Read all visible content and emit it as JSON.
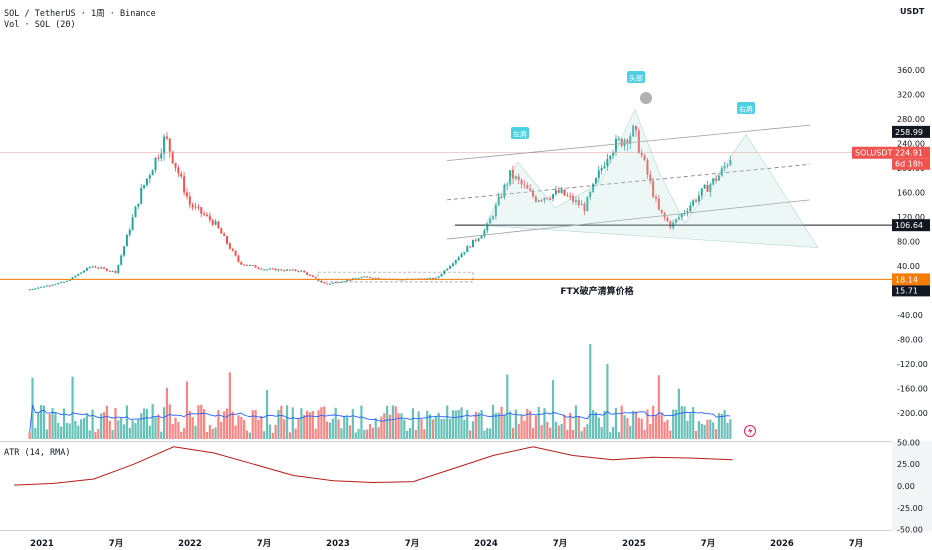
{
  "header": {
    "title": "SOL / TetherUS · 1周 · Binance",
    "volume_label": "Vol · SOL (20)",
    "currency": "USDT"
  },
  "atr_label": "ATR (14, RMA)",
  "annotations": {
    "ftx_label": "FTX破产清算价格",
    "left_shoulder": "左肩",
    "head": "头部",
    "right_shoulder": "右肩"
  },
  "price_tags": {
    "symbol": "SOLUSDT",
    "last_price": "224.91",
    "countdown": "6d 18h",
    "resistance": "258.99",
    "neckline": "106.64",
    "ftx_price": "18.14",
    "low_price": "15.71"
  },
  "colors": {
    "up": "#26a69a",
    "down": "#ef5350",
    "volume_ma": "#2962ff",
    "atr": "#b71c1c",
    "ftx_line": "#f57c00",
    "label_tag": "#4dd0e1"
  },
  "chart_data": {
    "type": "candlestick",
    "title": "SOL / TetherUS · 1周 · Binance",
    "price_axis_ticks": [
      "360.00",
      "320.00",
      "280.00",
      "240.00",
      "200.00",
      "160.00",
      "120.00",
      "80.00",
      "40.00",
      "0.00",
      "-40.00",
      "-80.00",
      "-120.00",
      "-160.00",
      "-200.00"
    ],
    "atr_axis_ticks": [
      "50.00",
      "25.00",
      "0.00",
      "-25.00",
      "-50.00"
    ],
    "x_ticks": [
      "2021",
      "7月",
      "2022",
      "7月",
      "2023",
      "7月",
      "2024",
      "7月",
      "2025",
      "7月",
      "2026",
      "7月"
    ],
    "y_range": [
      -200,
      380
    ],
    "key_prices": {
      "resistance": 258.99,
      "last": 224.91,
      "neckline": 106.64,
      "ftx": 18.14,
      "low": 15.71
    },
    "price_path": [
      {
        "date": "2020-12",
        "close": 2
      },
      {
        "date": "2021-03",
        "close": 15
      },
      {
        "date": "2021-05",
        "close": 40
      },
      {
        "date": "2021-07",
        "close": 30
      },
      {
        "date": "2021-09",
        "close": 160
      },
      {
        "date": "2021-11",
        "close": 250
      },
      {
        "date": "2022-01",
        "close": 140
      },
      {
        "date": "2022-03",
        "close": 110
      },
      {
        "date": "2022-05",
        "close": 45
      },
      {
        "date": "2022-07",
        "close": 35
      },
      {
        "date": "2022-10",
        "close": 32
      },
      {
        "date": "2022-12",
        "close": 10
      },
      {
        "date": "2023-03",
        "close": 22
      },
      {
        "date": "2023-06",
        "close": 18
      },
      {
        "date": "2023-09",
        "close": 20
      },
      {
        "date": "2023-11",
        "close": 60
      },
      {
        "date": "2024-01",
        "close": 100
      },
      {
        "date": "2024-03",
        "close": 190
      },
      {
        "date": "2024-05",
        "close": 150
      },
      {
        "date": "2024-07",
        "close": 160
      },
      {
        "date": "2024-09",
        "close": 135
      },
      {
        "date": "2024-11",
        "close": 230
      },
      {
        "date": "2025-01",
        "close": 260
      },
      {
        "date": "2025-03",
        "close": 130
      },
      {
        "date": "2025-04",
        "close": 105
      },
      {
        "date": "2025-06",
        "close": 150
      },
      {
        "date": "2025-08",
        "close": 190
      },
      {
        "date": "2025-09",
        "close": 224.91
      }
    ],
    "atr_path": [
      1,
      3,
      8,
      25,
      45,
      38,
      25,
      12,
      6,
      4,
      5,
      20,
      35,
      45,
      35,
      30,
      33,
      32,
      30
    ]
  }
}
